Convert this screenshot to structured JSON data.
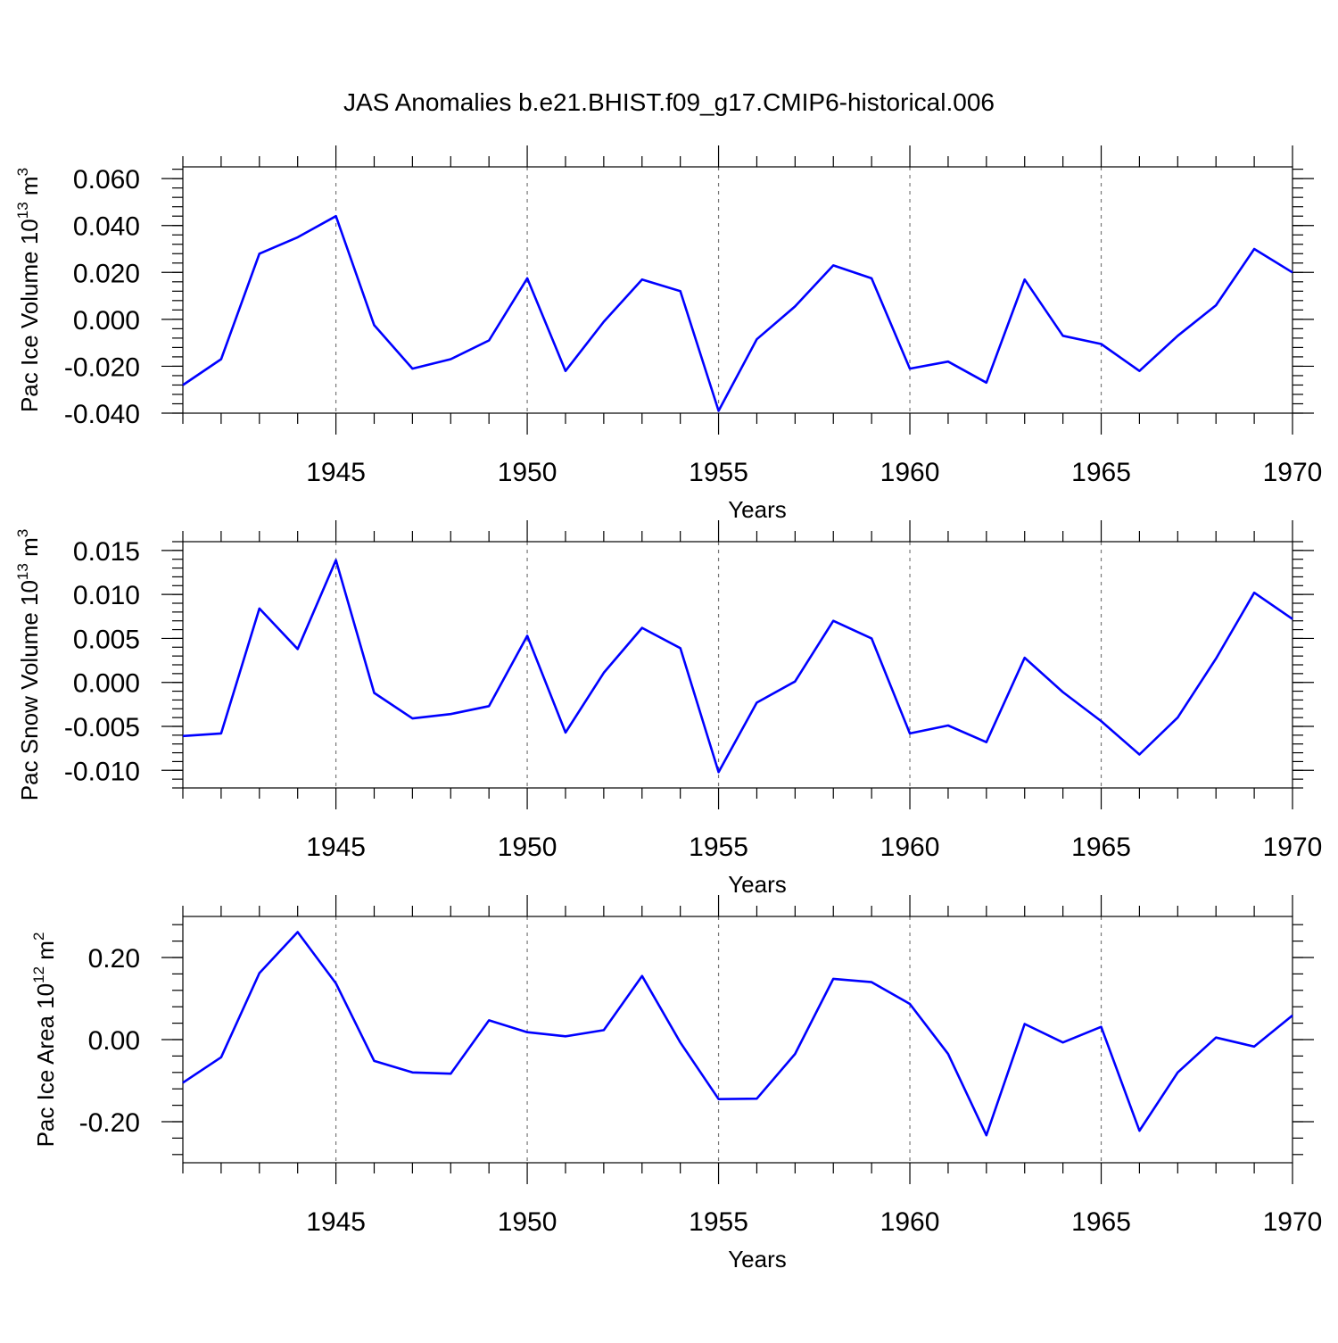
{
  "title": "JAS Anomalies b.e21.BHIST.f09_g17.CMIP6-historical.006",
  "colors": {
    "series": "#0000ff",
    "axis": "#000000",
    "grid": "#808080",
    "background": "#ffffff"
  },
  "chart_data": [
    {
      "type": "line",
      "title": "",
      "ylabel": {
        "text": "Pac Ice Volume 10",
        "sup": "13",
        "text2": " m",
        "sup2": "3"
      },
      "xlabel": "Years",
      "xlim": [
        1941,
        1970
      ],
      "ylim": [
        -0.04,
        0.065
      ],
      "yticks": [
        -0.04,
        -0.02,
        0.0,
        0.02,
        0.04,
        0.06
      ],
      "yticklabels": [
        "-0.040",
        "-0.020",
        "0.000",
        "0.020",
        "0.040",
        "0.060"
      ],
      "yminor": 0.004,
      "xticks": [
        1945,
        1950,
        1955,
        1960,
        1965,
        1970
      ],
      "xticklabels": [
        "1945",
        "1950",
        "1955",
        "1960",
        "1965",
        "1970"
      ],
      "grid": "vertical dashed at major x ticks",
      "x": [
        1941,
        1942,
        1943,
        1944,
        1945,
        1946,
        1947,
        1948,
        1949,
        1950,
        1951,
        1952,
        1953,
        1954,
        1955,
        1956,
        1957,
        1958,
        1959,
        1960,
        1961,
        1962,
        1963,
        1964,
        1965,
        1966,
        1967,
        1968,
        1969,
        1970
      ],
      "series": [
        {
          "values": [
            -0.028,
            -0.017,
            0.028,
            0.035,
            0.044,
            -0.0025,
            -0.021,
            -0.017,
            -0.009,
            0.0175,
            -0.022,
            -0.001,
            0.017,
            0.012,
            -0.039,
            -0.0085,
            0.0055,
            0.023,
            0.0175,
            -0.021,
            -0.018,
            -0.027,
            0.017,
            -0.007,
            -0.0105,
            -0.022,
            -0.007,
            0.006,
            0.03,
            0.02
          ]
        }
      ]
    },
    {
      "type": "line",
      "title": "",
      "ylabel": {
        "text": "Pac Snow Volume 10",
        "sup": "13",
        "text2": " m",
        "sup2": "3"
      },
      "xlabel": "Years",
      "xlim": [
        1941,
        1970
      ],
      "ylim": [
        -0.012,
        0.016
      ],
      "yticks": [
        -0.01,
        -0.005,
        0.0,
        0.005,
        0.01,
        0.015
      ],
      "yticklabels": [
        "-0.010",
        "-0.005",
        "0.000",
        "0.005",
        "0.010",
        "0.015"
      ],
      "yminor": 0.001,
      "xticks": [
        1945,
        1950,
        1955,
        1960,
        1965,
        1970
      ],
      "xticklabels": [
        "1945",
        "1950",
        "1955",
        "1960",
        "1965",
        "1970"
      ],
      "grid": "vertical dashed at major x ticks",
      "x": [
        1941,
        1942,
        1943,
        1944,
        1945,
        1946,
        1947,
        1948,
        1949,
        1950,
        1951,
        1952,
        1953,
        1954,
        1955,
        1956,
        1957,
        1958,
        1959,
        1960,
        1961,
        1962,
        1963,
        1964,
        1965,
        1966,
        1967,
        1968,
        1969,
        1970
      ],
      "series": [
        {
          "values": [
            -0.0061,
            -0.0058,
            0.0084,
            0.0038,
            0.0139,
            -0.0012,
            -0.0041,
            -0.0036,
            -0.0027,
            0.0053,
            -0.0057,
            0.0011,
            0.0062,
            0.0039,
            -0.0102,
            -0.0023,
            0.0001,
            0.007,
            0.005,
            -0.0058,
            -0.0049,
            -0.0068,
            0.0028,
            -0.0011,
            -0.0044,
            -0.0082,
            -0.004,
            0.0027,
            0.0102,
            0.0072
          ]
        }
      ]
    },
    {
      "type": "line",
      "title": "",
      "ylabel": {
        "text": "Pac Ice Area 10",
        "sup": "12",
        "text2": " m",
        "sup2": "2"
      },
      "xlabel": "Years",
      "xlim": [
        1941,
        1970
      ],
      "ylim": [
        -0.3,
        0.3
      ],
      "yticks": [
        -0.2,
        0.0,
        0.2
      ],
      "yticklabels": [
        "-0.20",
        "0.00",
        "0.20"
      ],
      "yminor": 0.04,
      "xticks": [
        1945,
        1950,
        1955,
        1960,
        1965,
        1970
      ],
      "xticklabels": [
        "1945",
        "1950",
        "1955",
        "1960",
        "1965",
        "1970"
      ],
      "grid": "vertical dashed at major x ticks",
      "x": [
        1941,
        1942,
        1943,
        1944,
        1945,
        1946,
        1947,
        1948,
        1949,
        1950,
        1951,
        1952,
        1953,
        1954,
        1955,
        1956,
        1957,
        1958,
        1959,
        1960,
        1961,
        1962,
        1963,
        1964,
        1965,
        1966,
        1967,
        1968,
        1969,
        1970
      ],
      "series": [
        {
          "values": [
            -0.105,
            -0.043,
            0.162,
            0.262,
            0.137,
            -0.052,
            -0.08,
            -0.083,
            0.047,
            0.018,
            0.008,
            0.023,
            0.155,
            -0.007,
            -0.145,
            -0.144,
            -0.035,
            0.148,
            0.14,
            0.087,
            -0.035,
            -0.233,
            0.038,
            -0.007,
            0.031,
            -0.222,
            -0.08,
            0.005,
            -0.017,
            0.059
          ]
        }
      ]
    }
  ]
}
